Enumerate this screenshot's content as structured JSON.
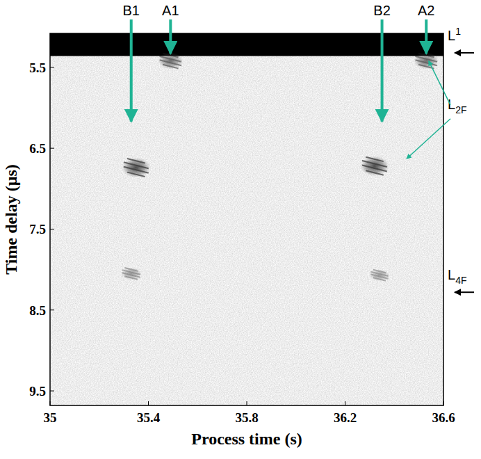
{
  "chart_data": {
    "type": "image",
    "x_label": "Process time (s)",
    "y_label": "Time delay (μs)",
    "xlim": [
      35,
      36.6
    ],
    "ylim": [
      5.08,
      9.68
    ],
    "xticks": [
      35,
      35.4,
      35.8,
      36.2,
      36.6
    ],
    "yticks": [
      5.5,
      6.5,
      7.5,
      8.5,
      9.5
    ],
    "saturated_band": [
      5.08,
      5.36
    ],
    "echoes": {
      "x": [
        35.49,
        36.53,
        35.35,
        36.32,
        35.33,
        36.34
      ],
      "y": [
        5.42,
        5.42,
        6.74,
        6.72,
        8.05,
        8.07
      ],
      "intensity": [
        0.6,
        0.6,
        0.85,
        0.85,
        0.3,
        0.25
      ]
    },
    "arrows": [
      {
        "text": "B1",
        "x": 35.33,
        "y": 6.17
      },
      {
        "text": "A1",
        "x": 35.49,
        "y": 5.33
      },
      {
        "text": "B2",
        "x": 36.35,
        "y": 6.17
      },
      {
        "text": "A2",
        "x": 36.53,
        "y": 5.33
      }
    ],
    "layers": [
      {
        "text": "L",
        "sup": "1",
        "y": 5.2
      },
      {
        "text": "L",
        "sub": "2F",
        "y": 6.05,
        "targets": [
          [
            36.54,
            5.42
          ],
          [
            36.45,
            6.63
          ]
        ]
      },
      {
        "text": "L",
        "sub": "4F",
        "y": 8.16
      }
    ]
  }
}
